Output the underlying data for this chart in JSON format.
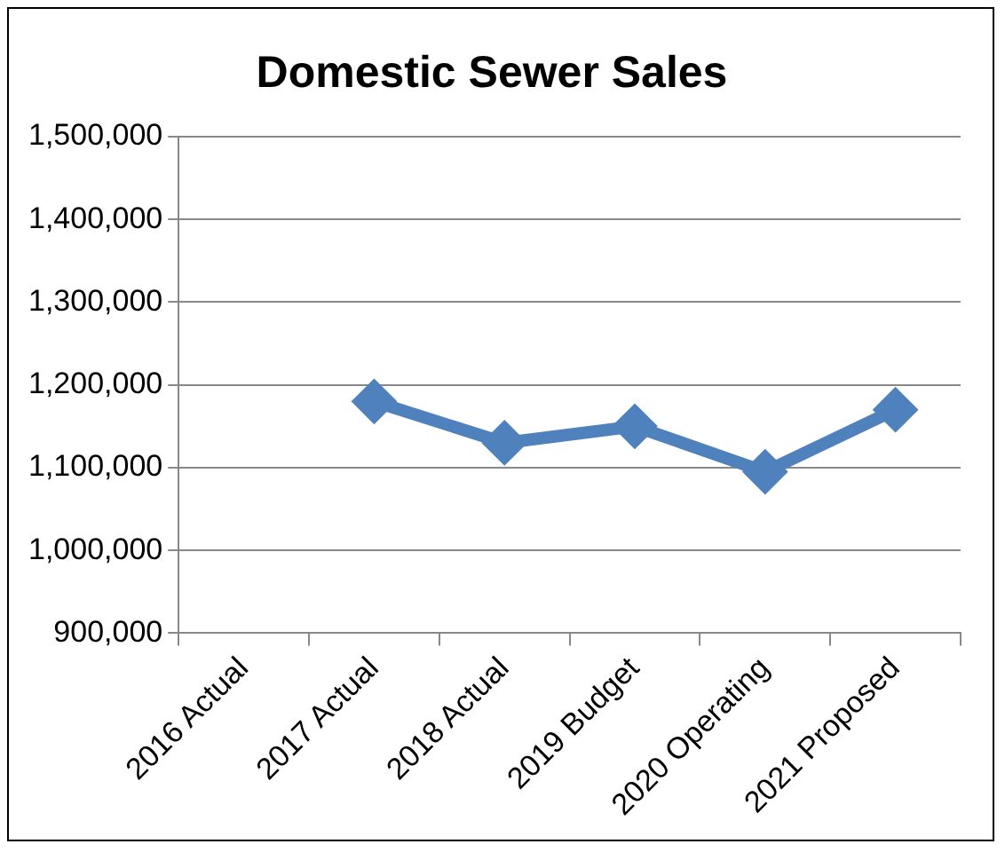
{
  "chart_data": {
    "type": "line",
    "title": "Domestic Sewer Sales",
    "categories": [
      "2016 Actual",
      "2017 Actual",
      "2018 Actual",
      "2019 Budget",
      "2020 Operating",
      "2021 Proposed"
    ],
    "series": [
      {
        "color": "#4f81bd",
        "values": [
          null,
          1180000,
          1130000,
          1150000,
          1095000,
          1170000
        ]
      }
    ],
    "ylim": [
      900000,
      1500000
    ],
    "yticks": [
      {
        "value": 900000,
        "label": "900,000"
      },
      {
        "value": 1000000,
        "label": "1,000,000"
      },
      {
        "value": 1100000,
        "label": "1,100,000"
      },
      {
        "value": 1200000,
        "label": "1,200,000"
      },
      {
        "value": 1300000,
        "label": "1,300,000"
      },
      {
        "value": 1400000,
        "label": "1,400,000"
      },
      {
        "value": 1500000,
        "label": "1,500,000"
      }
    ],
    "grid": "y",
    "legend": false,
    "marker": "diamond",
    "line_style": "solid"
  }
}
